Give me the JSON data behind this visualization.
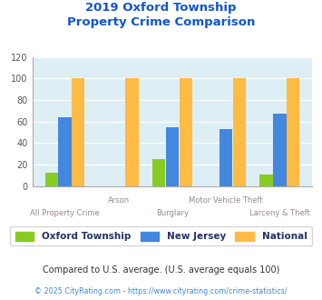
{
  "title_line1": "2019 Oxford Township",
  "title_line2": "Property Crime Comparison",
  "categories": [
    "All Property Crime",
    "Arson",
    "Burglary",
    "Motor Vehicle Theft",
    "Larceny & Theft"
  ],
  "oxford": [
    12,
    0,
    25,
    0,
    11
  ],
  "nj": [
    64,
    0,
    55,
    53,
    67
  ],
  "national": [
    100,
    100,
    100,
    100,
    100
  ],
  "oxford_color": "#88cc22",
  "nj_color": "#4488dd",
  "national_color": "#ffbb44",
  "ylim": [
    0,
    120
  ],
  "yticks": [
    0,
    20,
    40,
    60,
    80,
    100,
    120
  ],
  "bg_color": "#ddeef5",
  "title_color": "#1155cc",
  "xlabel_color": "#998899",
  "legend_label_color": "#223366",
  "legend_labels": [
    "Oxford Township",
    "New Jersey",
    "National"
  ],
  "footnote1": "Compared to U.S. average. (U.S. average equals 100)",
  "footnote2": "© 2025 CityRating.com - https://www.cityrating.com/crime-statistics/",
  "footnote1_color": "#333333",
  "footnote2_color": "#4488cc"
}
